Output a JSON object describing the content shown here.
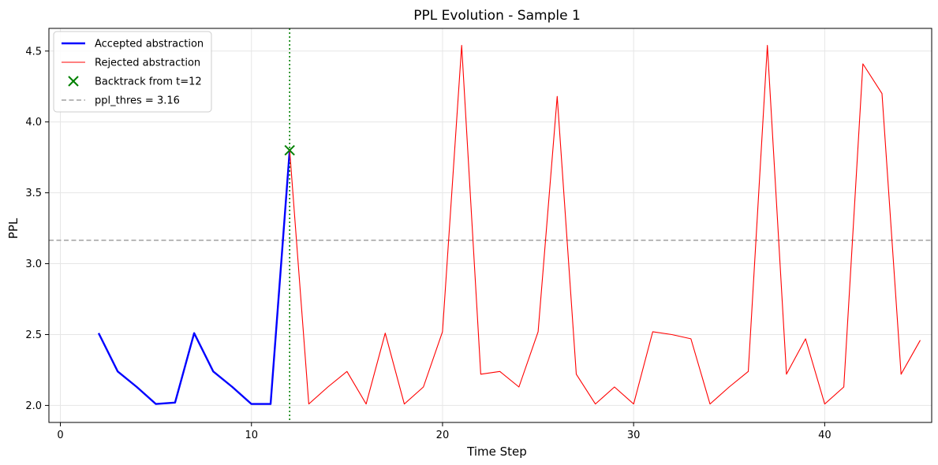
{
  "chart_data": {
    "type": "line",
    "title": "PPL Evolution - Sample 1",
    "xlabel": "Time Step",
    "ylabel": "PPL",
    "xlim": [
      -0.6,
      45.6
    ],
    "ylim": [
      1.88,
      4.66
    ],
    "xticks": [
      0,
      10,
      20,
      30,
      40
    ],
    "yticks": [
      2.0,
      2.5,
      3.0,
      3.5,
      4.0,
      4.5
    ],
    "grid": true,
    "legend_position": "upper-left",
    "series": [
      {
        "name": "Accepted abstraction",
        "color": "#0000ff",
        "style": "solid-thick",
        "x": [
          2,
          3,
          4,
          5,
          6,
          7,
          8,
          9,
          10,
          11,
          12
        ],
        "y": [
          2.51,
          2.24,
          2.13,
          2.01,
          2.02,
          2.51,
          2.24,
          2.13,
          2.01,
          2.01,
          3.8
        ]
      },
      {
        "name": "Rejected abstraction",
        "color": "#ff0000",
        "style": "solid-thin",
        "x": [
          12,
          13,
          14,
          15,
          16,
          17,
          18,
          19,
          20,
          21,
          22,
          23,
          24,
          25,
          26,
          27,
          28,
          29,
          30,
          31,
          32,
          33,
          34,
          35,
          36,
          37,
          38,
          39,
          40,
          41,
          42,
          43,
          44,
          45
        ],
        "y": [
          3.8,
          2.01,
          2.13,
          2.24,
          2.01,
          2.51,
          2.01,
          2.13,
          2.52,
          4.54,
          2.22,
          2.24,
          2.13,
          2.52,
          4.18,
          2.22,
          2.01,
          2.13,
          2.01,
          2.52,
          2.5,
          2.47,
          2.01,
          2.13,
          2.24,
          4.54,
          2.22,
          2.47,
          2.01,
          2.13,
          4.41,
          4.2,
          2.22,
          2.46
        ]
      }
    ],
    "markers": [
      {
        "name": "Backtrack from t=12",
        "x": 12,
        "y": 3.8,
        "color": "#008000",
        "marker": "x"
      }
    ],
    "hlines": [
      {
        "name": "ppl_thres = 3.16",
        "y": 3.165,
        "color": "#a0a0a0",
        "style": "dashed"
      }
    ],
    "vlines": [
      {
        "x": 12,
        "color": "#008000",
        "style": "dotted"
      }
    ]
  }
}
